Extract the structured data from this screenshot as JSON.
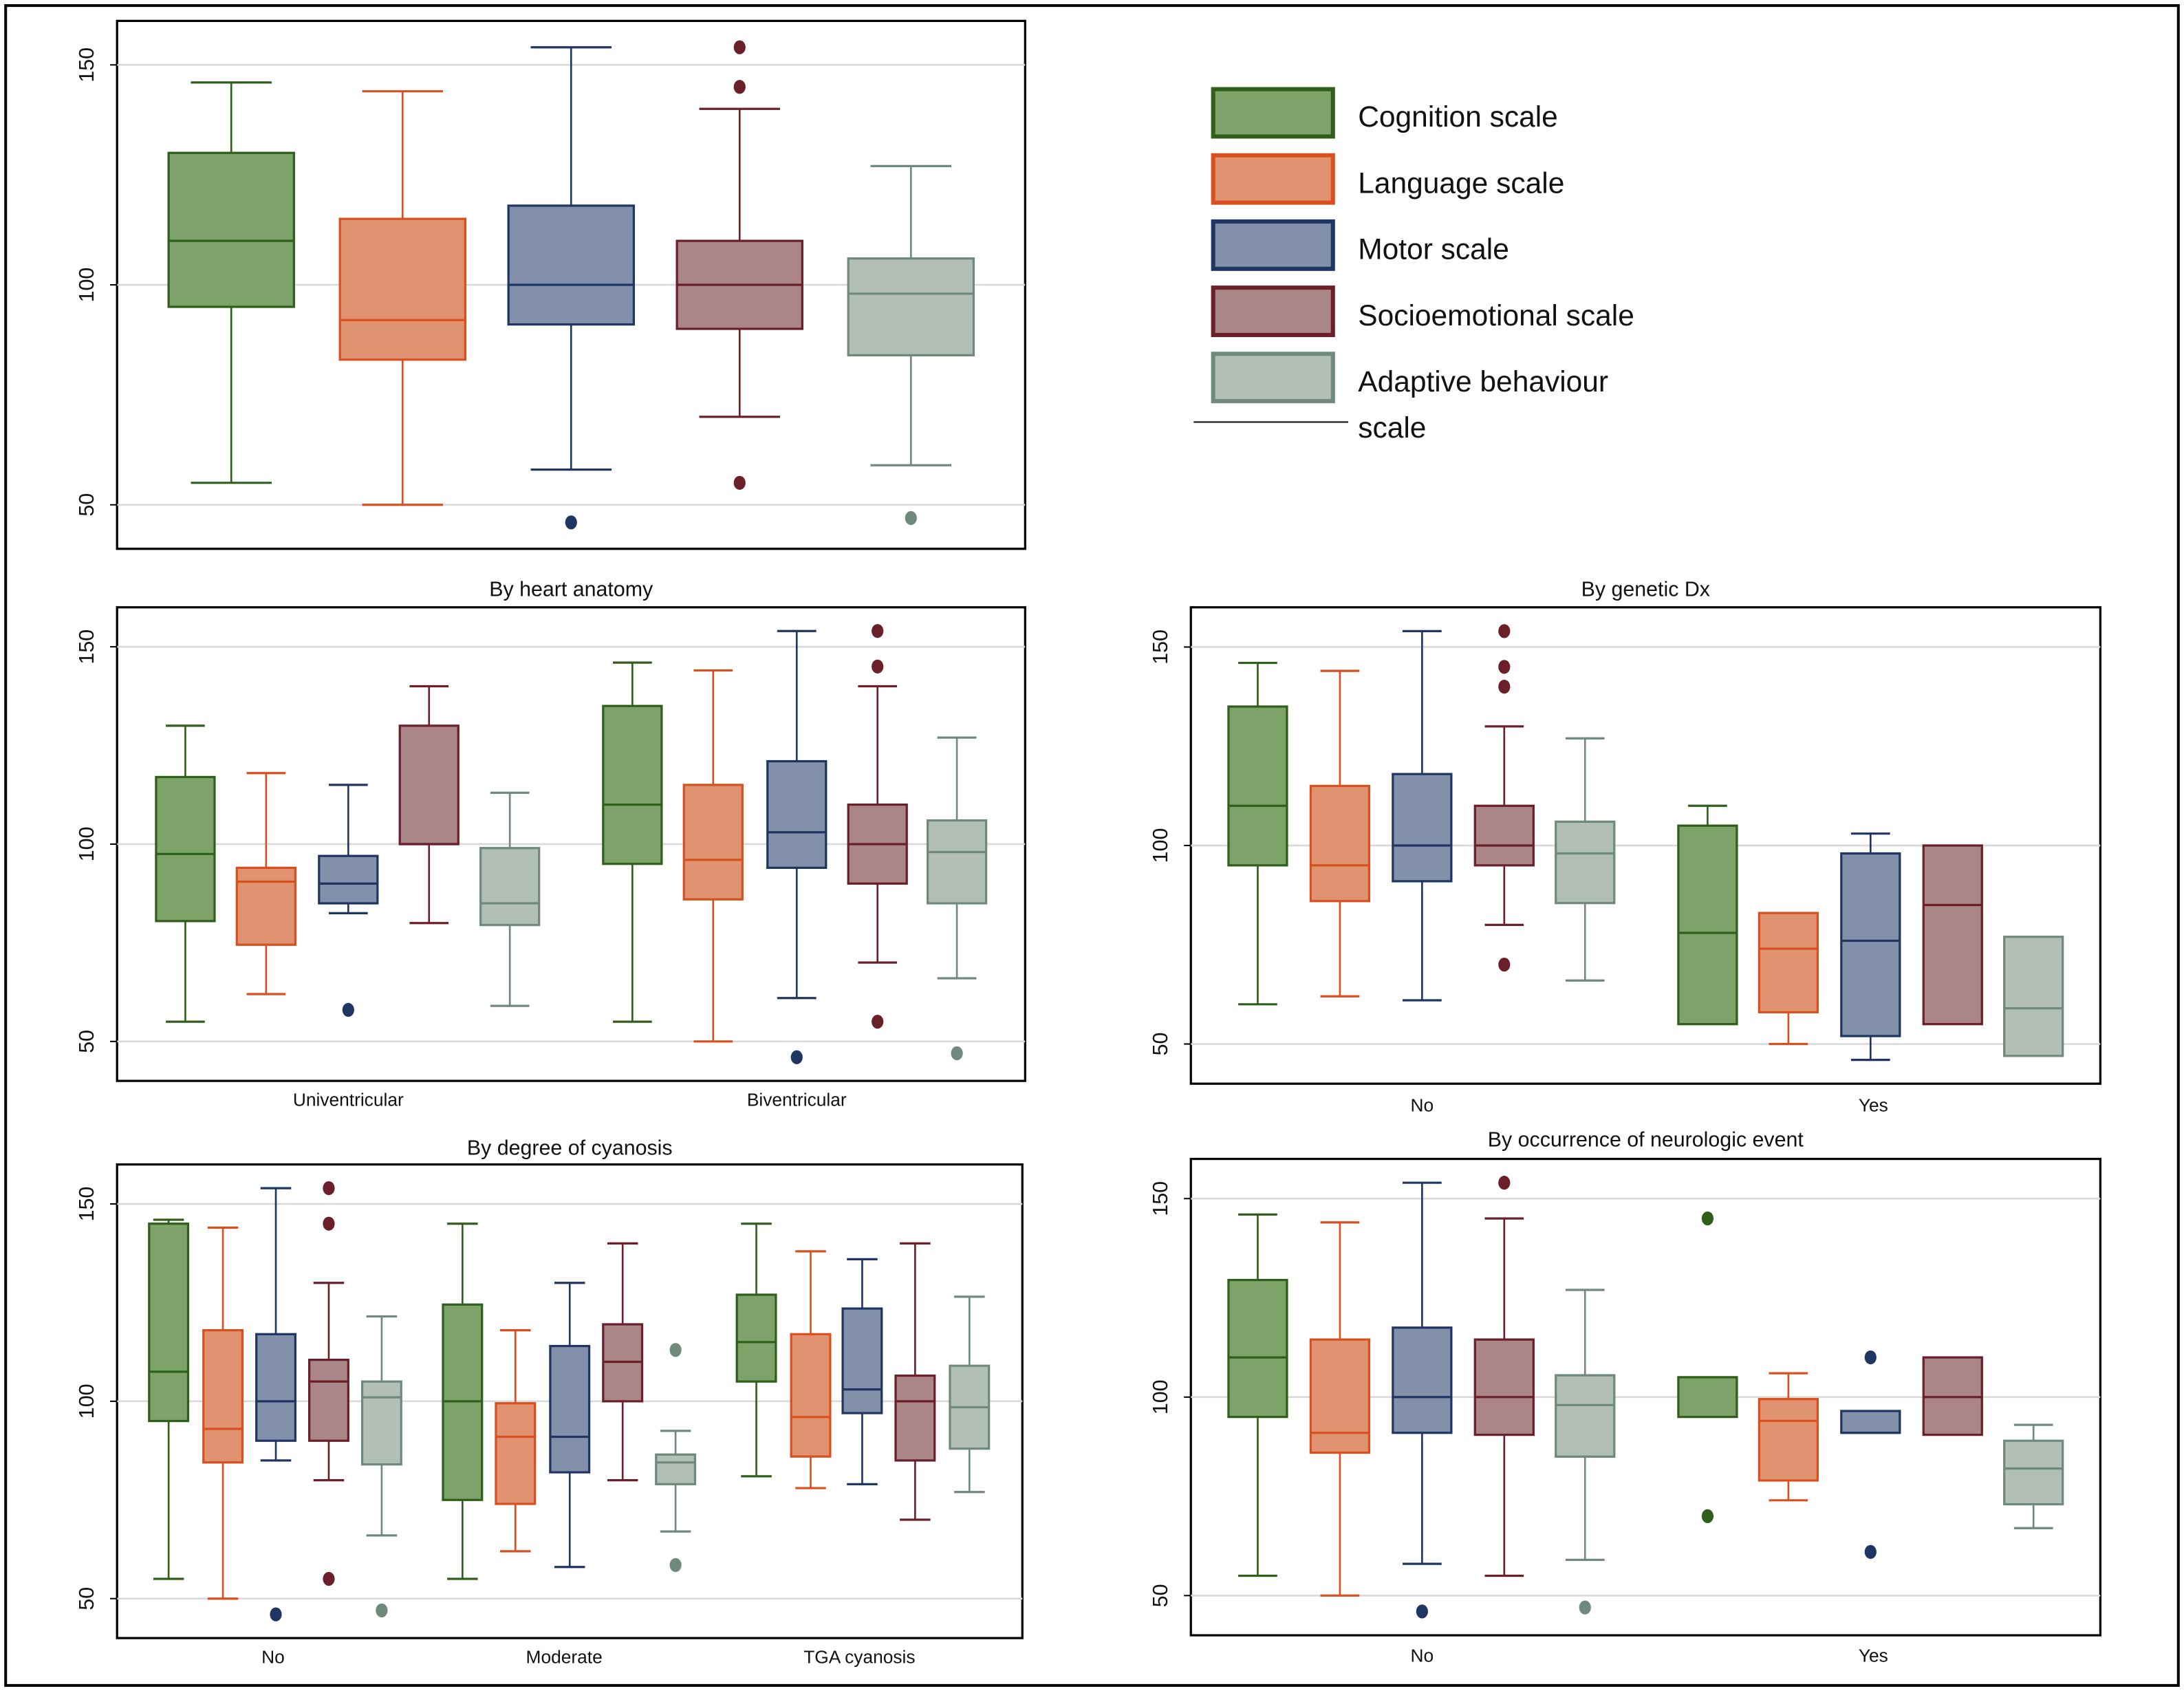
{
  "chart_data": [
    {
      "type": "box",
      "title": "",
      "ylim": [
        40,
        160
      ],
      "yticks": [
        50,
        100,
        150
      ],
      "grid": true,
      "categories": [
        ""
      ],
      "series": [
        "Cognition scale",
        "Language scale",
        "Motor scale",
        "Socioemotional scale",
        "Adaptive behaviour scale"
      ],
      "groups": [
        {
          "label": "",
          "boxes": [
            {
              "lo": 55,
              "q1": 95,
              "med": 110,
              "q3": 130,
              "hi": 146,
              "out": []
            },
            {
              "lo": 50,
              "q1": 83,
              "med": 92,
              "q3": 115,
              "hi": 144,
              "out": []
            },
            {
              "lo": 58,
              "q1": 91,
              "med": 100,
              "q3": 118,
              "hi": 154,
              "out": [
                46
              ]
            },
            {
              "lo": 70,
              "q1": 90,
              "med": 100,
              "q3": 110,
              "hi": 140,
              "out": [
                154,
                145,
                55
              ]
            },
            {
              "lo": 59,
              "q1": 84,
              "med": 98,
              "q3": 106,
              "hi": 127,
              "out": [
                47
              ]
            }
          ]
        }
      ]
    },
    {
      "type": "box",
      "title": "By heart anatomy",
      "ylim": [
        40,
        160
      ],
      "yticks": [
        50,
        100,
        150
      ],
      "groups": [
        {
          "label": "Univentricular",
          "boxes": [
            {
              "lo": 55,
              "q1": 80.5,
              "med": 97.5,
              "q3": 117,
              "hi": 130,
              "out": []
            },
            {
              "lo": 62,
              "q1": 74.5,
              "med": 90.5,
              "q3": 94,
              "hi": 118,
              "out": []
            },
            {
              "lo": 82.5,
              "q1": 85,
              "med": 90,
              "q3": 97,
              "hi": 115,
              "out": [
                58
              ]
            },
            {
              "lo": 80,
              "q1": 100,
              "med": 100,
              "q3": 130,
              "hi": 140,
              "out": []
            },
            {
              "lo": 59,
              "q1": 79.5,
              "med": 85,
              "q3": 99,
              "hi": 113,
              "out": []
            }
          ]
        },
        {
          "label": "Biventricular",
          "boxes": [
            {
              "lo": 55,
              "q1": 95,
              "med": 110,
              "q3": 135,
              "hi": 146,
              "out": []
            },
            {
              "lo": 50,
              "q1": 86,
              "med": 96,
              "q3": 115,
              "hi": 144,
              "out": []
            },
            {
              "lo": 61,
              "q1": 94,
              "med": 103,
              "q3": 121,
              "hi": 154,
              "out": [
                46
              ]
            },
            {
              "lo": 70,
              "q1": 90,
              "med": 100,
              "q3": 110,
              "hi": 140,
              "out": [
                154,
                145,
                55
              ]
            },
            {
              "lo": 66,
              "q1": 85,
              "med": 98,
              "q3": 106,
              "hi": 127,
              "out": [
                47
              ]
            }
          ]
        }
      ]
    },
    {
      "type": "box",
      "title": "By genetic Dx",
      "ylim": [
        40,
        160
      ],
      "yticks": [
        50,
        100,
        150
      ],
      "groups": [
        {
          "label": "No",
          "boxes": [
            {
              "lo": 60,
              "q1": 95,
              "med": 110,
              "q3": 135,
              "hi": 146,
              "out": []
            },
            {
              "lo": 62,
              "q1": 86,
              "med": 95,
              "q3": 115,
              "hi": 144,
              "out": []
            },
            {
              "lo": 61,
              "q1": 91,
              "med": 100,
              "q3": 118,
              "hi": 154,
              "out": []
            },
            {
              "lo": 80,
              "q1": 95,
              "med": 100,
              "q3": 110,
              "hi": 130,
              "out": [
                154,
                145,
                140,
                70
              ]
            },
            {
              "lo": 66,
              "q1": 85.5,
              "med": 98,
              "q3": 106,
              "hi": 127,
              "out": []
            }
          ]
        },
        {
          "label": "Yes",
          "boxes": [
            {
              "lo": 55,
              "q1": 55,
              "med": 78,
              "q3": 105,
              "hi": 110,
              "out": []
            },
            {
              "lo": 50,
              "q1": 58,
              "med": 74,
              "q3": 83,
              "hi": 83,
              "out": []
            },
            {
              "lo": 46,
              "q1": 52,
              "med": 76,
              "q3": 98,
              "hi": 103,
              "out": []
            },
            {
              "lo": 55,
              "q1": 55,
              "med": 85,
              "q3": 100,
              "hi": 100,
              "out": []
            },
            {
              "lo": 47,
              "q1": 47,
              "med": 59,
              "q3": 77,
              "hi": 77,
              "out": []
            }
          ]
        }
      ]
    },
    {
      "type": "box",
      "title": "By degree of cyanosis",
      "ylim": [
        40,
        160
      ],
      "yticks": [
        50,
        100,
        150
      ],
      "groups": [
        {
          "label": "No",
          "boxes": [
            {
              "lo": 55,
              "q1": 95,
              "med": 107.5,
              "q3": 145,
              "hi": 146,
              "out": []
            },
            {
              "lo": 50,
              "q1": 84.5,
              "med": 93,
              "q3": 118,
              "hi": 144,
              "out": []
            },
            {
              "lo": 85,
              "q1": 90,
              "med": 100,
              "q3": 117,
              "hi": 154,
              "out": [
                46
              ]
            },
            {
              "lo": 80,
              "q1": 90,
              "med": 105,
              "q3": 110.5,
              "hi": 130,
              "out": [
                154,
                145,
                55
              ]
            },
            {
              "lo": 66,
              "q1": 84,
              "med": 101,
              "q3": 105,
              "hi": 121.5,
              "out": [
                47
              ]
            }
          ]
        },
        {
          "label": "Moderate",
          "boxes": [
            {
              "lo": 55,
              "q1": 75,
              "med": 100,
              "q3": 124.5,
              "hi": 145,
              "out": []
            },
            {
              "lo": 62,
              "q1": 74,
              "med": 91,
              "q3": 99.5,
              "hi": 118,
              "out": []
            },
            {
              "lo": 58,
              "q1": 82,
              "med": 91,
              "q3": 114,
              "hi": 130,
              "out": []
            },
            {
              "lo": 80,
              "q1": 100,
              "med": 110,
              "q3": 119.5,
              "hi": 140,
              "out": []
            },
            {
              "lo": 67,
              "q1": 79,
              "med": 84.5,
              "q3": 86.5,
              "hi": 92.5,
              "out": [
                113,
                58.5
              ]
            }
          ]
        },
        {
          "label": "TGA cyanosis",
          "boxes": [
            {
              "lo": 81,
              "q1": 105,
              "med": 115,
              "q3": 127,
              "hi": 145,
              "out": []
            },
            {
              "lo": 78,
              "q1": 86,
              "med": 96,
              "q3": 117,
              "hi": 138,
              "out": []
            },
            {
              "lo": 79,
              "q1": 97,
              "med": 103,
              "q3": 123.5,
              "hi": 136,
              "out": []
            },
            {
              "lo": 70,
              "q1": 85,
              "med": 100,
              "q3": 106.5,
              "hi": 140,
              "out": []
            },
            {
              "lo": 77,
              "q1": 88,
              "med": 98.5,
              "q3": 109,
              "hi": 126.5,
              "out": []
            }
          ]
        }
      ]
    },
    {
      "type": "box",
      "title": "By occurrence of neurologic event",
      "ylim": [
        40,
        160
      ],
      "yticks": [
        50,
        100,
        150
      ],
      "groups": [
        {
          "label": "No",
          "boxes": [
            {
              "lo": 55,
              "q1": 95,
              "med": 110,
              "q3": 129.5,
              "hi": 146,
              "out": []
            },
            {
              "lo": 50,
              "q1": 86,
              "med": 91,
              "q3": 114.5,
              "hi": 144,
              "out": []
            },
            {
              "lo": 58,
              "q1": 91,
              "med": 100,
              "q3": 117.5,
              "hi": 154,
              "out": [
                46
              ]
            },
            {
              "lo": 55,
              "q1": 90.5,
              "med": 100,
              "q3": 114.5,
              "hi": 145,
              "out": [
                154
              ]
            },
            {
              "lo": 59,
              "q1": 85,
              "med": 98,
              "q3": 105.5,
              "hi": 127,
              "out": [
                47
              ]
            }
          ]
        },
        {
          "label": "Yes",
          "boxes": [
            {
              "lo": 95,
              "q1": 95,
              "med": 105,
              "q3": 105,
              "hi": 105,
              "out": [
                145,
                70
              ]
            },
            {
              "lo": 74,
              "q1": 79,
              "med": 94,
              "q3": 99.5,
              "hi": 106,
              "out": []
            },
            {
              "lo": 91,
              "q1": 91,
              "med": 91,
              "q3": 96.5,
              "hi": 96.5,
              "out": [
                110,
                61
              ]
            },
            {
              "lo": 90.5,
              "q1": 90.5,
              "med": 100,
              "q3": 110,
              "hi": 110,
              "out": []
            },
            {
              "lo": 67,
              "q1": 73,
              "med": 82,
              "q3": 89,
              "hi": 93,
              "out": []
            }
          ]
        }
      ]
    }
  ],
  "legend": {
    "placement": "top-right",
    "items": [
      {
        "label": "Cognition scale",
        "fill": "#7da36b",
        "stroke": "#2f5f1a"
      },
      {
        "label": "Language scale",
        "fill": "#e09370",
        "stroke": "#d9501e"
      },
      {
        "label": "Motor scale",
        "fill": "#8390aa",
        "stroke": "#1f3563"
      },
      {
        "label": "Socioemotional scale",
        "fill": "#ab8689",
        "stroke": "#6b2029"
      },
      {
        "label": "Adaptive behaviour",
        "label_line2": "scale",
        "fill": "#b2bfb6",
        "stroke": "#6f8a7d"
      }
    ]
  }
}
